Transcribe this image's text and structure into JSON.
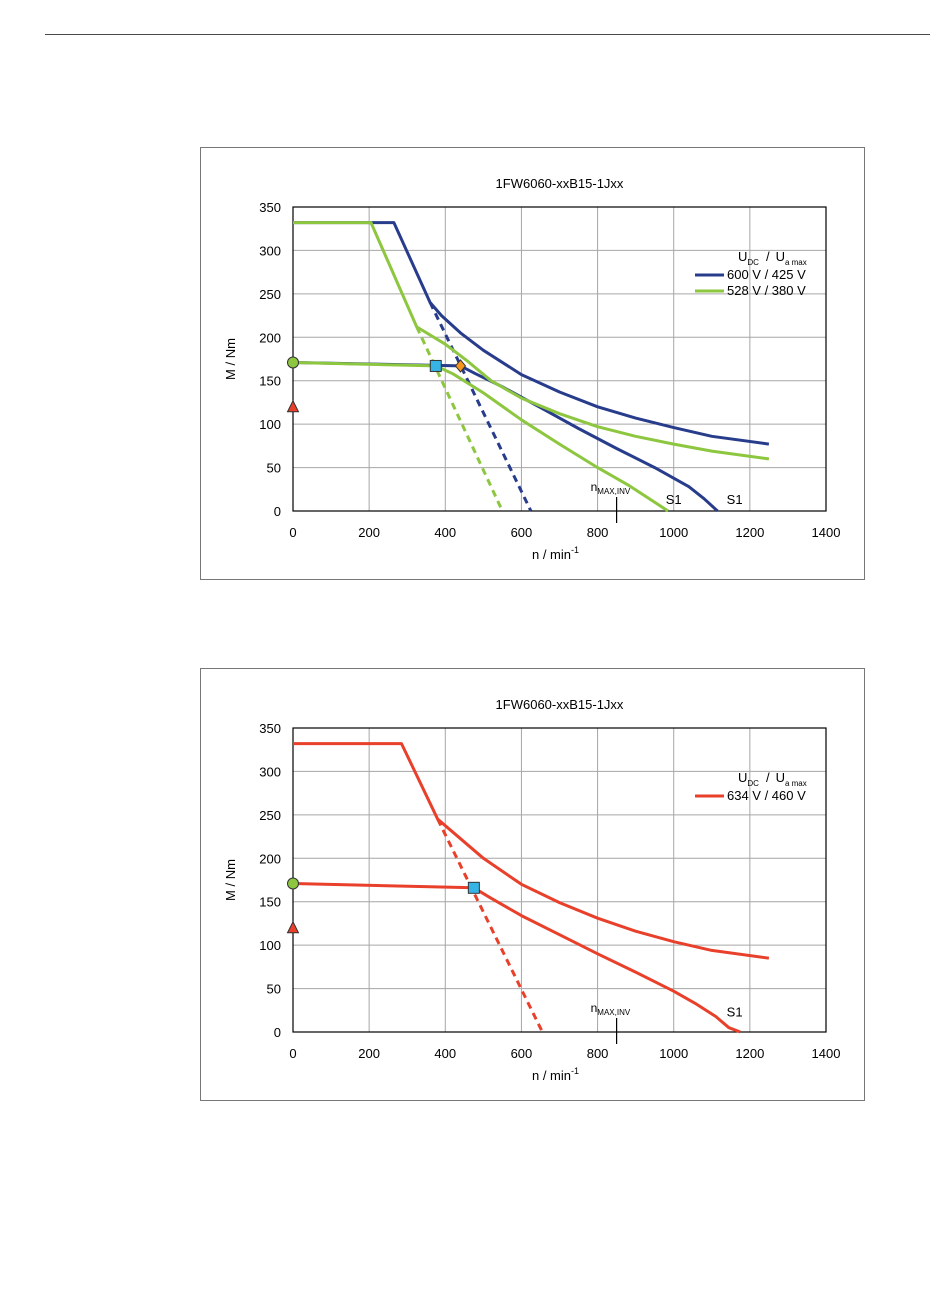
{
  "chart_data": [
    {
      "type": "line",
      "title": "1FW6060-xxB15-1Jxx",
      "xlabel": {
        "base": "n / min",
        "sup": "-1"
      },
      "ylabel": "M / Nm",
      "xlim": [
        0,
        1400
      ],
      "ylim": [
        0,
        350
      ],
      "xticks": [
        "0",
        "200",
        "400",
        "600",
        "800",
        "1000",
        "1200",
        "1400"
      ],
      "yticks": [
        "0",
        "50",
        "100",
        "150",
        "200",
        "250",
        "300",
        "350"
      ],
      "grid": true,
      "legend": {
        "placement": "top-right",
        "header": {
          "u1": "U",
          "s1": "DC",
          "sep": "/",
          "u2": "U",
          "s2": "a max"
        },
        "entries": [
          {
            "label": "600 V / 425 V",
            "color": "#283c8c"
          },
          {
            "label": "528 V / 380 V",
            "color": "#8dc63f"
          }
        ]
      },
      "annotation": {
        "n": "n",
        "sub": "MAX,INV",
        "x": 850
      },
      "s1_labels": [
        {
          "text": "S1",
          "x": 1000,
          "y": 8
        },
        {
          "text": "S1",
          "x": 1160,
          "y": 8
        }
      ],
      "series": [
        {
          "color": "#283c8c",
          "style": "solid",
          "points": [
            [
              0,
              332
            ],
            [
              265,
              332
            ],
            [
              360,
              240
            ],
            [
              390,
              225
            ],
            [
              440,
              205
            ],
            [
              500,
              185
            ],
            [
              600,
              157
            ],
            [
              700,
              137
            ],
            [
              800,
              120
            ],
            [
              900,
              107
            ],
            [
              1000,
              96
            ],
            [
              1100,
              86
            ],
            [
              1250,
              77
            ]
          ]
        },
        {
          "color": "#283c8c",
          "style": "dashed",
          "points": [
            [
              360,
              240
            ],
            [
              625,
              0
            ]
          ]
        },
        {
          "color": "#283c8c",
          "style": "solid",
          "points": [
            [
              0,
              171
            ],
            [
              440,
              167
            ],
            [
              480,
              158
            ],
            [
              550,
              143
            ],
            [
              650,
              119
            ],
            [
              750,
              95
            ],
            [
              850,
              72
            ],
            [
              950,
              50
            ],
            [
              1040,
              28
            ],
            [
              1080,
              14
            ],
            [
              1115,
              0
            ]
          ]
        },
        {
          "color": "#8dc63f",
          "style": "solid",
          "points": [
            [
              0,
              332
            ],
            [
              205,
              332
            ],
            [
              325,
              212
            ],
            [
              400,
              192
            ],
            [
              460,
              172
            ],
            [
              520,
              150
            ],
            [
              600,
              130
            ],
            [
              700,
              112
            ],
            [
              800,
              97
            ],
            [
              900,
              86
            ],
            [
              1000,
              77
            ],
            [
              1100,
              69
            ],
            [
              1250,
              60
            ]
          ]
        },
        {
          "color": "#8dc63f",
          "style": "dashed",
          "points": [
            [
              325,
              212
            ],
            [
              550,
              0
            ]
          ]
        },
        {
          "color": "#8dc63f",
          "style": "solid",
          "points": [
            [
              0,
              171
            ],
            [
              375,
              167
            ],
            [
              420,
              158
            ],
            [
              500,
              136
            ],
            [
              600,
              105
            ],
            [
              700,
              77
            ],
            [
              800,
              50
            ],
            [
              880,
              30
            ],
            [
              950,
              10
            ],
            [
              985,
              0
            ]
          ]
        }
      ],
      "markers": [
        {
          "shape": "circle",
          "x": 0,
          "y": 171,
          "color": "#8dc63f"
        },
        {
          "shape": "triangle",
          "x": 0,
          "y": 120,
          "color": "#e8402a"
        },
        {
          "shape": "square",
          "x": 375,
          "y": 167,
          "color": "#36b4e5"
        },
        {
          "shape": "diamond",
          "x": 440,
          "y": 167,
          "color": "#f7941d"
        }
      ]
    },
    {
      "type": "line",
      "title": "1FW6060-xxB15-1Jxx",
      "xlabel": {
        "base": "n / min",
        "sup": "-1"
      },
      "ylabel": "M / Nm",
      "xlim": [
        0,
        1400
      ],
      "ylim": [
        0,
        350
      ],
      "xticks": [
        "0",
        "200",
        "400",
        "600",
        "800",
        "1000",
        "1200",
        "1400"
      ],
      "yticks": [
        "0",
        "50",
        "100",
        "150",
        "200",
        "250",
        "300",
        "350"
      ],
      "grid": true,
      "legend": {
        "placement": "top-right",
        "header": {
          "u1": "U",
          "s1": "DC",
          "sep": "/",
          "u2": "U",
          "s2": "a max"
        },
        "entries": [
          {
            "label": "634 V / 460 V",
            "color": "#e8402a"
          }
        ]
      },
      "annotation": {
        "n": "n",
        "sub": "MAX,INV",
        "x": 850
      },
      "s1_labels": [
        {
          "text": "S1",
          "x": 1160,
          "y": 18
        }
      ],
      "series": [
        {
          "color": "#e8402a",
          "style": "solid",
          "points": [
            [
              0,
              332
            ],
            [
              285,
              332
            ],
            [
              380,
              245
            ],
            [
              420,
              230
            ],
            [
              500,
              200
            ],
            [
              600,
              170
            ],
            [
              700,
              149
            ],
            [
              800,
              131
            ],
            [
              900,
              116
            ],
            [
              1000,
              104
            ],
            [
              1100,
              94
            ],
            [
              1250,
              85
            ]
          ]
        },
        {
          "color": "#e8402a",
          "style": "dashed",
          "points": [
            [
              380,
              245
            ],
            [
              655,
              0
            ]
          ]
        },
        {
          "color": "#e8402a",
          "style": "solid",
          "points": [
            [
              0,
              171
            ],
            [
              475,
              166
            ],
            [
              520,
              154
            ],
            [
              600,
              134
            ],
            [
              700,
              112
            ],
            [
              800,
              90
            ],
            [
              900,
              69
            ],
            [
              1000,
              47
            ],
            [
              1060,
              32
            ],
            [
              1110,
              18
            ],
            [
              1145,
              5
            ],
            [
              1175,
              0
            ]
          ]
        }
      ],
      "markers": [
        {
          "shape": "circle",
          "x": 0,
          "y": 171,
          "color": "#8dc63f"
        },
        {
          "shape": "triangle",
          "x": 0,
          "y": 120,
          "color": "#e8402a"
        },
        {
          "shape": "square",
          "x": 475,
          "y": 166,
          "color": "#36b4e5"
        }
      ]
    }
  ]
}
